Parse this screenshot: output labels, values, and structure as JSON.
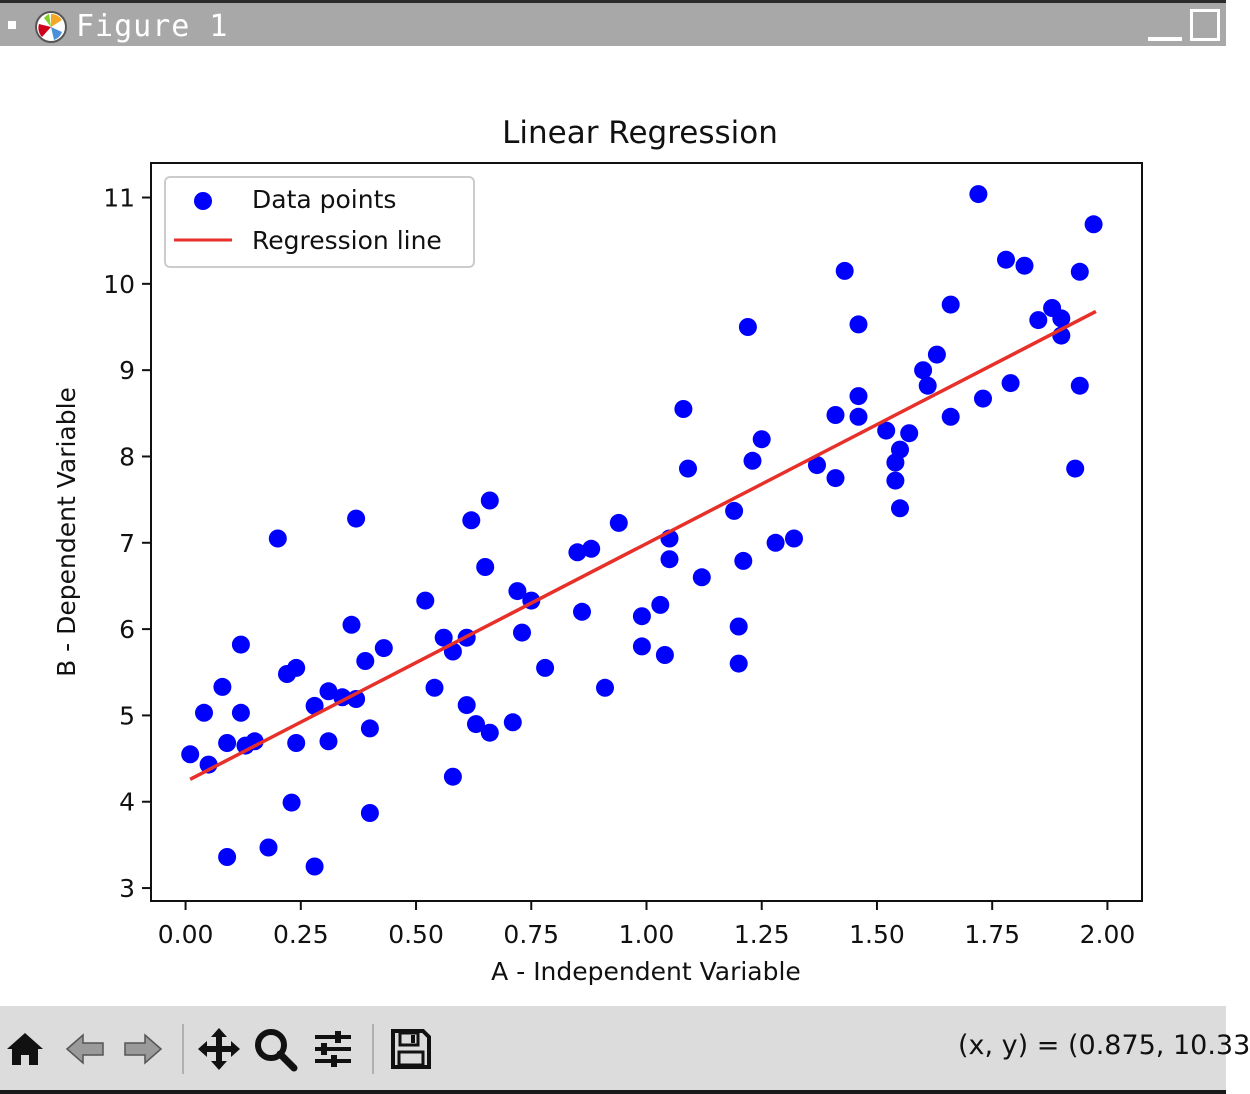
{
  "window": {
    "title": "Figure 1"
  },
  "toolbar": {
    "buttons": [
      "home-icon",
      "back-arrow-icon",
      "forward-arrow-icon",
      "pan-icon",
      "zoom-icon",
      "configure-subplots-icon",
      "save-icon"
    ],
    "coords": "(x, y) = (0.875, 10.33"
  },
  "colors": {
    "points": "#0000ff",
    "line": "#e8302a"
  },
  "chart_data": {
    "type": "scatter",
    "title": "Linear Regression",
    "xlabel": "A - Independent Variable",
    "ylabel": "B - Dependent Variable",
    "xlim": [
      -0.075,
      2.075
    ],
    "ylim": [
      2.85,
      11.4
    ],
    "xticks": [
      0.0,
      0.25,
      0.5,
      0.75,
      1.0,
      1.25,
      1.5,
      1.75,
      2.0
    ],
    "xtick_labels": [
      "0.00",
      "0.25",
      "0.50",
      "0.75",
      "1.00",
      "1.25",
      "1.50",
      "1.75",
      "2.00"
    ],
    "yticks": [
      3,
      4,
      5,
      6,
      7,
      8,
      9,
      10,
      11
    ],
    "ytick_labels": [
      "3",
      "4",
      "5",
      "6",
      "7",
      "8",
      "9",
      "10",
      "11"
    ],
    "grid": false,
    "legend": {
      "placement": "upper-left",
      "entries": [
        "Data points",
        "Regression line"
      ]
    },
    "series": [
      {
        "name": "Data points",
        "kind": "scatter",
        "points": [
          [
            0.01,
            4.55
          ],
          [
            0.04,
            5.03
          ],
          [
            0.05,
            4.43
          ],
          [
            0.08,
            5.33
          ],
          [
            0.09,
            4.68
          ],
          [
            0.09,
            3.36
          ],
          [
            0.12,
            5.82
          ],
          [
            0.12,
            5.03
          ],
          [
            0.13,
            4.65
          ],
          [
            0.15,
            4.7
          ],
          [
            0.18,
            3.47
          ],
          [
            0.2,
            7.05
          ],
          [
            0.22,
            5.48
          ],
          [
            0.23,
            3.99
          ],
          [
            0.24,
            5.55
          ],
          [
            0.24,
            4.68
          ],
          [
            0.28,
            5.11
          ],
          [
            0.28,
            3.25
          ],
          [
            0.31,
            5.28
          ],
          [
            0.31,
            4.7
          ],
          [
            0.34,
            5.21
          ],
          [
            0.36,
            6.05
          ],
          [
            0.37,
            7.28
          ],
          [
            0.37,
            5.19
          ],
          [
            0.39,
            5.63
          ],
          [
            0.4,
            4.85
          ],
          [
            0.4,
            3.87
          ],
          [
            0.43,
            5.78
          ],
          [
            0.52,
            6.33
          ],
          [
            0.54,
            5.32
          ],
          [
            0.56,
            5.9
          ],
          [
            0.58,
            5.74
          ],
          [
            0.58,
            4.29
          ],
          [
            0.61,
            5.9
          ],
          [
            0.61,
            5.12
          ],
          [
            0.62,
            7.26
          ],
          [
            0.63,
            4.9
          ],
          [
            0.65,
            6.72
          ],
          [
            0.66,
            7.49
          ],
          [
            0.66,
            4.8
          ],
          [
            0.71,
            4.92
          ],
          [
            0.72,
            6.44
          ],
          [
            0.73,
            5.96
          ],
          [
            0.75,
            6.33
          ],
          [
            0.78,
            5.55
          ],
          [
            0.85,
            6.89
          ],
          [
            0.86,
            6.2
          ],
          [
            0.88,
            6.93
          ],
          [
            0.91,
            5.32
          ],
          [
            0.94,
            7.23
          ],
          [
            0.99,
            6.15
          ],
          [
            0.99,
            5.8
          ],
          [
            1.03,
            6.28
          ],
          [
            1.04,
            5.7
          ],
          [
            1.05,
            7.05
          ],
          [
            1.05,
            6.81
          ],
          [
            1.08,
            8.55
          ],
          [
            1.09,
            7.86
          ],
          [
            1.12,
            6.6
          ],
          [
            1.19,
            7.37
          ],
          [
            1.2,
            6.03
          ],
          [
            1.2,
            5.6
          ],
          [
            1.21,
            6.79
          ],
          [
            1.22,
            9.5
          ],
          [
            1.23,
            7.95
          ],
          [
            1.25,
            8.2
          ],
          [
            1.28,
            7.0
          ],
          [
            1.32,
            7.05
          ],
          [
            1.37,
            7.9
          ],
          [
            1.41,
            8.48
          ],
          [
            1.41,
            7.75
          ],
          [
            1.43,
            10.15
          ],
          [
            1.46,
            9.53
          ],
          [
            1.46,
            8.7
          ],
          [
            1.46,
            8.46
          ],
          [
            1.52,
            8.3
          ],
          [
            1.54,
            7.93
          ],
          [
            1.54,
            7.72
          ],
          [
            1.55,
            8.08
          ],
          [
            1.55,
            7.4
          ],
          [
            1.57,
            8.27
          ],
          [
            1.6,
            9.0
          ],
          [
            1.61,
            8.82
          ],
          [
            1.63,
            9.18
          ],
          [
            1.66,
            9.76
          ],
          [
            1.66,
            8.46
          ],
          [
            1.72,
            11.04
          ],
          [
            1.73,
            8.67
          ],
          [
            1.78,
            10.28
          ],
          [
            1.79,
            8.85
          ],
          [
            1.82,
            10.21
          ],
          [
            1.85,
            9.58
          ],
          [
            1.88,
            9.72
          ],
          [
            1.9,
            9.6
          ],
          [
            1.9,
            9.4
          ],
          [
            1.93,
            7.86
          ],
          [
            1.94,
            10.14
          ],
          [
            1.94,
            8.82
          ],
          [
            1.97,
            10.69
          ]
        ]
      },
      {
        "name": "Regression line",
        "kind": "line",
        "points": [
          [
            0.01,
            4.26
          ],
          [
            1.975,
            9.68
          ]
        ]
      }
    ]
  }
}
